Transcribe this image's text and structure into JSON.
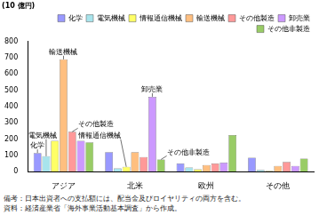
{
  "chart_data": {
    "type": "bar",
    "y_label": "(10 億円)",
    "categories": [
      "アジア",
      "北米",
      "欧州",
      "その他"
    ],
    "series": [
      {
        "name": "化学",
        "color": "#9999ff",
        "values": [
          115,
          120,
          50,
          85
        ]
      },
      {
        "name": "電気機械",
        "color": "#a8e4ec",
        "values": [
          95,
          20,
          25,
          10
        ]
      },
      {
        "name": "情報通信機械",
        "color": "#ffff66",
        "values": [
          190,
          30,
          15,
          5
        ]
      },
      {
        "name": "輸送機械",
        "color": "#ffbf80",
        "values": [
          690,
          120,
          40,
          35
        ]
      },
      {
        "name": "その他製造",
        "color": "#ff9999",
        "values": [
          245,
          90,
          50,
          60
        ]
      },
      {
        "name": "卸売業",
        "color": "#cc99ff",
        "values": [
          190,
          460,
          55,
          35
        ]
      },
      {
        "name": "その他非製造",
        "color": "#99cc66",
        "values": [
          180,
          75,
          225,
          80
        ]
      }
    ],
    "ylim": [
      0,
      800
    ],
    "yticks": [
      0,
      100,
      200,
      300,
      400,
      500,
      600,
      700,
      800
    ],
    "grid": false,
    "legend": "top",
    "annotations": [
      {
        "text": "輸送機械",
        "category": "アジア",
        "series": "輸送機械"
      },
      {
        "text": "その他製造",
        "category": "アジア",
        "series": "その他製造"
      },
      {
        "text": "電気機械",
        "category": "アジア",
        "series": "電気機械"
      },
      {
        "text": "化学",
        "category": "アジア",
        "series": "化学"
      },
      {
        "text": "卸売業",
        "category": "北米",
        "series": "卸売業"
      },
      {
        "text": "情報通信機械",
        "category": "北米",
        "series": "情報通信機械"
      },
      {
        "text": "その他非製造",
        "category": "北米",
        "series": "その他非製造"
      }
    ],
    "notes": [
      "備考：日本出資者への支払額には、配当金及びロイヤリティの両方を含む。",
      "資料：経済産業省「海外事業活動基本調査」から作成。"
    ]
  }
}
